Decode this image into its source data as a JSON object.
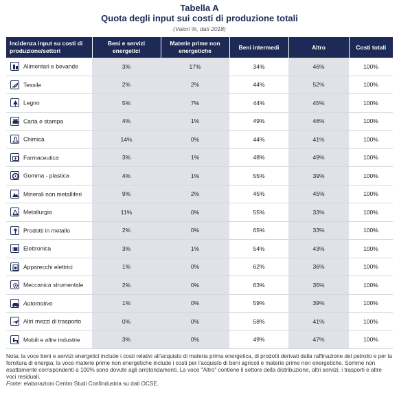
{
  "title": "Tabella A",
  "subtitle": "Quota degli input sui costi di produzione totali",
  "note_units": "(Valori %, dati 2018)",
  "headers": {
    "col0": "Incidenza input su costi di produzione/settori",
    "col1": "Beni e servizi energetici",
    "col2": "Materie prime non energetiche",
    "col3": "Beni intermedi",
    "col4": "Altro",
    "col5": "Costi totali"
  },
  "shaded_columns": [
    1,
    2,
    4
  ],
  "rows": [
    {
      "label": "Alimentari e bevande",
      "icon": "food-icon",
      "v1": "3%",
      "v2": "17%",
      "v3": "34%",
      "v4": "46%",
      "v5": "100%"
    },
    {
      "label": "Tessile",
      "icon": "textile-icon",
      "v1": "2%",
      "v2": "2%",
      "v3": "44%",
      "v4": "52%",
      "v5": "100%"
    },
    {
      "label": "Legno",
      "icon": "tree-icon",
      "v1": "5%",
      "v2": "7%",
      "v3": "44%",
      "v4": "45%",
      "v5": "100%"
    },
    {
      "label": "Carta e stampa",
      "icon": "printer-icon",
      "v1": "4%",
      "v2": "1%",
      "v3": "49%",
      "v4": "46%",
      "v5": "100%"
    },
    {
      "label": "Chimica",
      "icon": "flask-icon",
      "v1": "14%",
      "v2": "0%",
      "v3": "44%",
      "v4": "41%",
      "v5": "100%"
    },
    {
      "label": "Farmaceutica",
      "icon": "medicine-icon",
      "v1": "3%",
      "v2": "1%",
      "v3": "48%",
      "v4": "49%",
      "v5": "100%"
    },
    {
      "label": "Gomma - plastica",
      "icon": "tire-icon",
      "v1": "4%",
      "v2": "1%",
      "v3": "55%",
      "v4": "39%",
      "v5": "100%"
    },
    {
      "label": "Minerali non metalliferi",
      "icon": "mineral-icon",
      "v1": "9%",
      "v2": "2%",
      "v3": "45%",
      "v4": "45%",
      "v5": "100%"
    },
    {
      "label": "Metallurgia",
      "icon": "metal-icon",
      "v1": "11%",
      "v2": "0%",
      "v3": "55%",
      "v4": "33%",
      "v5": "100%"
    },
    {
      "label": "Prodotti in metallo",
      "icon": "bolt-icon",
      "v1": "2%",
      "v2": "0%",
      "v3": "65%",
      "v4": "33%",
      "v5": "100%"
    },
    {
      "label": "Elettronica",
      "icon": "chip-icon",
      "v1": "3%",
      "v2": "1%",
      "v3": "54%",
      "v4": "43%",
      "v5": "100%"
    },
    {
      "label": "Apparecchi elettrici",
      "icon": "appliance-icon",
      "v1": "1%",
      "v2": "0%",
      "v3": "62%",
      "v4": "36%",
      "v5": "100%"
    },
    {
      "label": "Meccanica strumentale",
      "icon": "gear-icon",
      "v1": "2%",
      "v2": "0%",
      "v3": "63%",
      "v4": "35%",
      "v5": "100%"
    },
    {
      "label": "Automotive",
      "icon": "car-icon",
      "italic": true,
      "v1": "1%",
      "v2": "0%",
      "v3": "59%",
      "v4": "39%",
      "v5": "100%"
    },
    {
      "label": "Altri mezzi di trasporto",
      "icon": "plane-icon",
      "v1": "0%",
      "v2": "0%",
      "v3": "58%",
      "v4": "41%",
      "v5": "100%"
    },
    {
      "label": "Mobili e altre industrie",
      "icon": "furniture-icon",
      "v1": "3%",
      "v2": "0%",
      "v3": "49%",
      "v4": "47%",
      "v5": "100%"
    }
  ],
  "notes": {
    "text": "Nota: la voce beni e servizi energetici include i costi relativi all'acquisto di materia prima energetica, di prodotti derivati dalla raffinazione del petrolio e per la fornitura di energia; la voce materie prime non energetiche include i costi per l'acquisto di beni agricoli e materie prime non energetiche. Somme non esattamente corrispondenti a 100% sono dovute agli arrotondamenti. La voce \"Altro\" contiene il settore della distribuzione, altri servizi, i trasporti e altre voci residuali.",
    "source_label": "Fonte",
    "source_text": ": elaborazioni Centro Studi Confindustria su dati OCSE."
  }
}
